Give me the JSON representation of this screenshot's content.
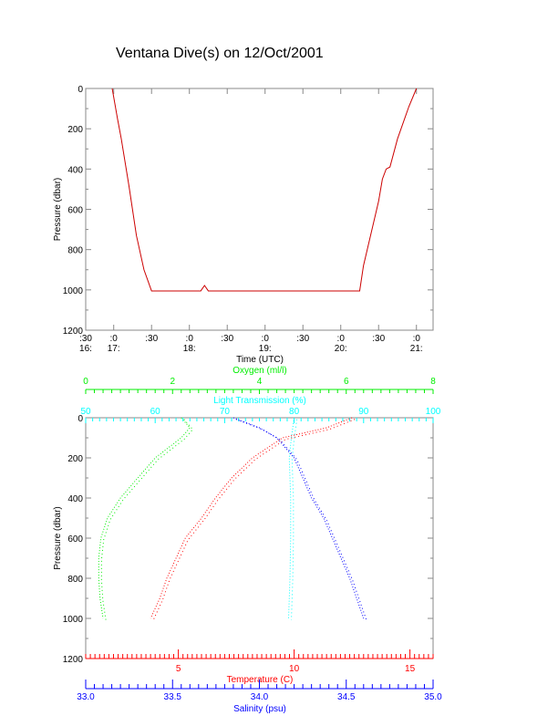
{
  "title": "Ventana Dive(s) on 12/Oct/2001",
  "chart_data": [
    {
      "type": "line",
      "title": "Ventana Dive(s) on 12/Oct/2001",
      "xlabel": "Time (UTC)",
      "ylabel": "Pressure (dbar)",
      "xlim_hours": [
        16.63,
        21.22
      ],
      "ylim": [
        1200,
        0
      ],
      "xticks": [
        {
          "h": 16.5,
          "top": ":30",
          "bottom": "16:"
        },
        {
          "h": 17,
          "top": ":0",
          "bottom": "17:"
        },
        {
          "h": 17.5,
          "top": ":30",
          "bottom": ""
        },
        {
          "h": 18,
          "top": ":0",
          "bottom": "18:"
        },
        {
          "h": 18.5,
          "top": ":30",
          "bottom": ""
        },
        {
          "h": 19,
          "top": ":0",
          "bottom": "19:"
        },
        {
          "h": 19.5,
          "top": ":30",
          "bottom": ""
        },
        {
          "h": 20,
          "top": ":0",
          "bottom": "20:"
        },
        {
          "h": 20.5,
          "top": ":30",
          "bottom": ""
        },
        {
          "h": 21,
          "top": ":0",
          "bottom": "21:"
        }
      ],
      "yticks": [
        "0",
        "200",
        "400",
        "600",
        "800",
        "1000",
        "1200"
      ],
      "series": [
        {
          "name": "Pressure",
          "color": "#cc0000",
          "points": [
            [
              16.98,
              0
            ],
            [
              17.05,
              150
            ],
            [
              17.1,
              250
            ],
            [
              17.2,
              480
            ],
            [
              17.3,
              730
            ],
            [
              17.4,
              900
            ],
            [
              17.5,
              1005
            ],
            [
              18.15,
              1005
            ],
            [
              18.2,
              978
            ],
            [
              18.25,
              1005
            ],
            [
              20.25,
              1005
            ],
            [
              20.3,
              880
            ],
            [
              20.4,
              720
            ],
            [
              20.5,
              560
            ],
            [
              20.55,
              450
            ],
            [
              20.6,
              400
            ],
            [
              20.65,
              390
            ],
            [
              20.75,
              250
            ],
            [
              20.9,
              90
            ],
            [
              21.0,
              0
            ]
          ]
        }
      ]
    },
    {
      "type": "line",
      "ylabel": "Pressure (dbar)",
      "ylim": [
        1200,
        0
      ],
      "yticks": [
        "0",
        "200",
        "400",
        "600",
        "800",
        "1000",
        "1200"
      ],
      "axes": [
        {
          "name": "Oxygen (ml/l)",
          "color": "#00ee00",
          "range": [
            0,
            8
          ],
          "ticks": [
            "0",
            "2",
            "4",
            "6",
            "8"
          ],
          "position": "top"
        },
        {
          "name": "Light Transmission (%)",
          "color": "#00ffff",
          "range": [
            50,
            100
          ],
          "ticks": [
            "50",
            "60",
            "70",
            "80",
            "90",
            "100"
          ],
          "position": "top"
        },
        {
          "name": "Temperature (C)",
          "color": "#ff0000",
          "range": [
            1,
            16
          ],
          "ticks": [
            "5",
            "10",
            "15"
          ],
          "position": "bottom"
        },
        {
          "name": "Salinity (psu)",
          "color": "#0000ff",
          "range": [
            33,
            35
          ],
          "ticks": [
            "33.0",
            "33.5",
            "34.0",
            "34.5",
            "35.0"
          ],
          "position": "bottom"
        }
      ],
      "series": [
        {
          "name": "Oxygen",
          "axis": 0,
          "points": [
            [
              2.2,
              0
            ],
            [
              2.4,
              50
            ],
            [
              2.2,
              100
            ],
            [
              1.9,
              150
            ],
            [
              1.6,
              200
            ],
            [
              1.2,
              300
            ],
            [
              0.8,
              400
            ],
            [
              0.5,
              500
            ],
            [
              0.35,
              600
            ],
            [
              0.3,
              700
            ],
            [
              0.3,
              800
            ],
            [
              0.33,
              900
            ],
            [
              0.4,
              1000
            ]
          ]
        },
        {
          "name": "Light Transmission",
          "axis": 1,
          "points": [
            [
              80,
              0
            ],
            [
              79.6,
              100
            ],
            [
              79.3,
              200
            ],
            [
              79.5,
              400
            ],
            [
              79.5,
              600
            ],
            [
              79.4,
              800
            ],
            [
              79.2,
              1000
            ]
          ]
        },
        {
          "name": "Temperature",
          "axis": 2,
          "points": [
            [
              12.5,
              0
            ],
            [
              11.4,
              50
            ],
            [
              9.5,
              100
            ],
            [
              8.2,
              200
            ],
            [
              7.3,
              300
            ],
            [
              6.6,
              400
            ],
            [
              6.0,
              500
            ],
            [
              5.3,
              600
            ],
            [
              4.9,
              700
            ],
            [
              4.5,
              800
            ],
            [
              4.2,
              900
            ],
            [
              3.8,
              1000
            ]
          ]
        },
        {
          "name": "Salinity",
          "axis": 3,
          "points": [
            [
              33.85,
              0
            ],
            [
              34.0,
              50
            ],
            [
              34.1,
              100
            ],
            [
              34.2,
              200
            ],
            [
              34.25,
              300
            ],
            [
              34.3,
              400
            ],
            [
              34.37,
              500
            ],
            [
              34.42,
              600
            ],
            [
              34.47,
              700
            ],
            [
              34.52,
              800
            ],
            [
              34.56,
              900
            ],
            [
              34.6,
              1000
            ]
          ]
        }
      ]
    }
  ]
}
